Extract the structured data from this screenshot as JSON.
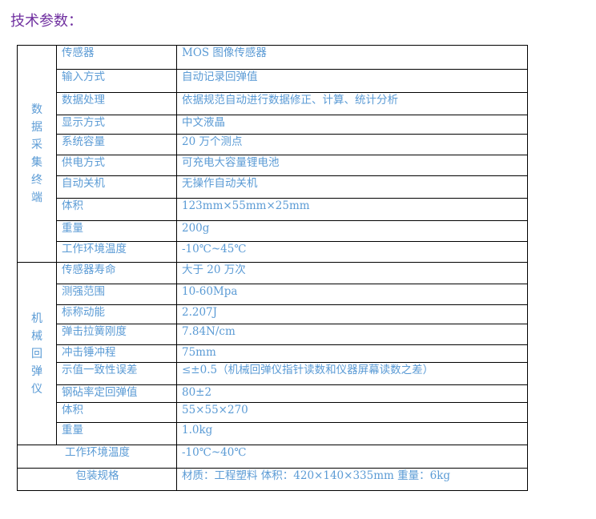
{
  "title": "技术参数：",
  "sections": [
    {
      "label": "数据采集终端",
      "rows": [
        {
          "name": "传感器",
          "value": "MOS 图像传感器"
        },
        {
          "name": "输入方式",
          "value": "自动记录回弹值"
        },
        {
          "name": "数据处理",
          "value": "依据规范自动进行数据修正、计算、统计分析"
        },
        {
          "name": "显示方式",
          "value": "中文液晶"
        },
        {
          "name": "系统容量",
          "value": "20 万个测点"
        },
        {
          "name": "供电方式",
          "value": "可充电大容量锂电池"
        },
        {
          "name": "自动关机",
          "value": "无操作自动关机"
        },
        {
          "name": "体积",
          "value": "123mm×55mm×25mm"
        },
        {
          "name": "重量",
          "value": "200g"
        },
        {
          "name": "工作环境温度",
          "value": "-10℃~45℃"
        }
      ]
    },
    {
      "label": "机械回弹仪",
      "rows": [
        {
          "name": "传感器寿命",
          "value": "大于 20 万次"
        },
        {
          "name": "测强范围",
          "value": "10-60Mpa"
        },
        {
          "name": "标称动能",
          "value": "2.207J"
        },
        {
          "name": "弹击拉簧刚度",
          "value": "7.84N/cm"
        },
        {
          "name": "冲击锤冲程",
          "value": "75mm"
        },
        {
          "name": "示值一致性误差",
          "value": "≤±0.5（机械回弹仪指针读数和仪器屏幕读数之差）"
        },
        {
          "name": "钢砧率定回弹值",
          "value": "80±2"
        },
        {
          "name": "体积",
          "value": "55×55×270"
        },
        {
          "name": "重量",
          "value": "1.0kg"
        }
      ]
    }
  ],
  "footer_rows": [
    {
      "name": "工作环境温度",
      "value": "-10℃~40℃"
    },
    {
      "name": "包装规格",
      "value": "材质：工程塑料   体积：420×140×335mm   重量：6kg"
    }
  ]
}
